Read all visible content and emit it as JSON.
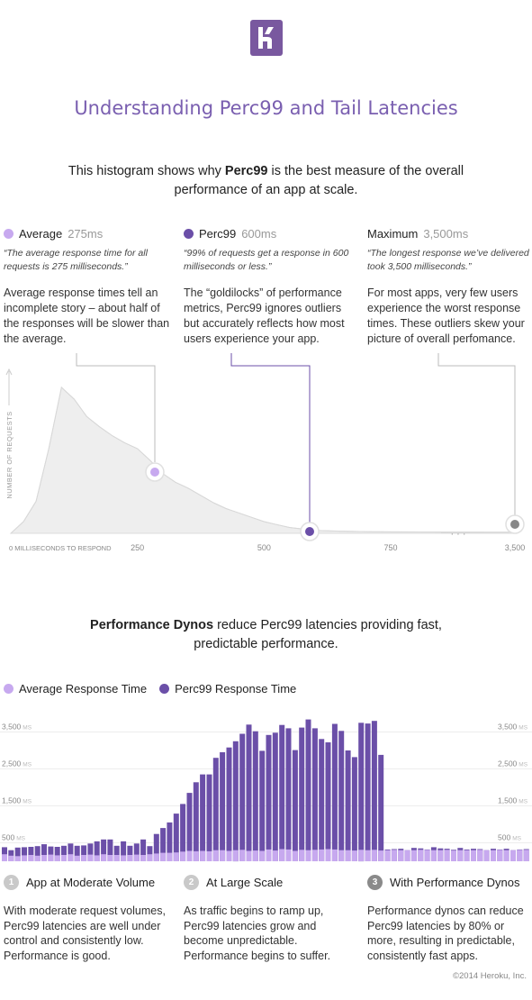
{
  "logo": {
    "icon": "heroku-logo",
    "color": "#79589f"
  },
  "title": "Understanding Perc99 and Tail Latencies",
  "intro": {
    "pre": "This histogram shows why ",
    "bold": "Perc99",
    "post": " is the best measure of the overall performance of an app at scale."
  },
  "columns": [
    {
      "label": "Average",
      "value": "275ms",
      "color": "#c7a9ef",
      "quote": "“The average response time for all requests is 275 milliseconds.”",
      "desc": "Average response times tell an incomplete story – about half of the responses will be slower than the average."
    },
    {
      "label": "Perc99",
      "value": "600ms",
      "color": "#6b4fa8",
      "quote": "“99% of requests get a response in 600 milliseconds or less.”",
      "desc": "The “goldilocks” of performance metrics, Perc99 ignores outliers but accurately reflects how most users experience your app."
    },
    {
      "label": "Maximum",
      "value": "3,500ms",
      "color": "#888888",
      "quote": "“The longest response we’ve delivered took 3,500 milliseconds.”",
      "desc": "For most apps, very few users experience the worst response times. These outliers skew your picture of overall perfomance."
    }
  ],
  "section2": {
    "bold": "Performance Dynos",
    "post": " reduce Perc99 latencies providing fast, predictable performance."
  },
  "legend": [
    {
      "label": "Average Response Time",
      "color": "#c7a9ef"
    },
    {
      "label": "Perc99 Response Time",
      "color": "#6b4fa8"
    }
  ],
  "phases": [
    {
      "num": "1",
      "label": "App at Moderate Volume",
      "desc": "With moderate request volumes, Perc99 latencies are well under control and consistently low. Performance is good."
    },
    {
      "num": "2",
      "label": "At Large Scale",
      "desc": "As traffic begins to ramp up, Perc99 latencies grow and become unpredictable. Performance begins to suffer."
    },
    {
      "num": "3",
      "label": "With Performance Dynos",
      "desc": "Performance dynos can reduce Perc99 latencies by 80% or more, resulting in predictable, consistently fast apps."
    }
  ],
  "copyright": "©2014 Heroku, Inc.",
  "chart_data": [
    {
      "type": "area",
      "ylabel": "NUMBER OF REQUESTS",
      "xlabel": "MILLISECONDS TO RESPOND",
      "x_ticks": [
        "0",
        "250",
        "500",
        "750",
        "3,500"
      ],
      "x_tick_values": [
        0,
        250,
        500,
        750,
        3500
      ],
      "x_break": "· · ·",
      "x": [
        0,
        25,
        50,
        75,
        100,
        125,
        150,
        175,
        200,
        225,
        250,
        275,
        300,
        325,
        350,
        375,
        400,
        425,
        450,
        475,
        500,
        525,
        550,
        575,
        600,
        650,
        700,
        750,
        800,
        850
      ],
      "y": [
        0,
        8,
        22,
        58,
        100,
        92,
        80,
        73,
        67,
        62,
        58,
        50,
        41,
        35,
        31,
        26,
        21,
        17,
        14,
        11,
        8,
        6,
        4,
        3,
        2,
        1.5,
        1.2,
        1,
        0.8,
        0.6
      ],
      "markers": [
        {
          "name": "Average",
          "x": 275,
          "color": "#c7a9ef"
        },
        {
          "name": "Perc99",
          "x": 600,
          "color": "#6b4fa8"
        },
        {
          "name": "Maximum",
          "x": 3500,
          "color": "#888888"
        }
      ],
      "grid": false
    },
    {
      "type": "bar",
      "y_ticks": [
        "500",
        "1,500",
        "2,500",
        "3,500"
      ],
      "y_tick_values": [
        500,
        1500,
        2500,
        3500
      ],
      "y_unit": "MS",
      "ylim": [
        0,
        4000
      ],
      "series": [
        {
          "name": "Average Response Time",
          "values": [
            190,
            150,
            140,
            160,
            170,
            150,
            170,
            180,
            160,
            170,
            190,
            150,
            170,
            180,
            160,
            190,
            170,
            170,
            160,
            170,
            180,
            170,
            190,
            210,
            230,
            230,
            240,
            260,
            280,
            270,
            280,
            270,
            300,
            300,
            280,
            300,
            310,
            280,
            290,
            280,
            320,
            290,
            330,
            320,
            280,
            310,
            300,
            310,
            320,
            330,
            320,
            300,
            300,
            290,
            310,
            300,
            310,
            290,
            300,
            310,
            300,
            300,
            300,
            310,
            310,
            300,
            300,
            310,
            290,
            300,
            300,
            300,
            310,
            300,
            300,
            310,
            300,
            300,
            310,
            310
          ]
        },
        {
          "name": "Perc99 Response Time",
          "values": [
            380,
            300,
            370,
            380,
            390,
            410,
            460,
            400,
            390,
            420,
            480,
            420,
            430,
            480,
            540,
            590,
            590,
            420,
            540,
            420,
            480,
            590,
            410,
            740,
            900,
            1050,
            1290,
            1550,
            1850,
            2140,
            2350,
            2350,
            2800,
            2950,
            3080,
            3250,
            3450,
            3700,
            3520,
            2990,
            3420,
            3480,
            3690,
            3600,
            3010,
            3620,
            3840,
            3600,
            3310,
            3220,
            3720,
            3530,
            3000,
            2820,
            3750,
            3730,
            3800,
            2880,
            320,
            330,
            340,
            300,
            360,
            350,
            320,
            380,
            350,
            340,
            310,
            360,
            320,
            340,
            330,
            300,
            340,
            320,
            340,
            300,
            320,
            330
          ]
        }
      ]
    }
  ]
}
